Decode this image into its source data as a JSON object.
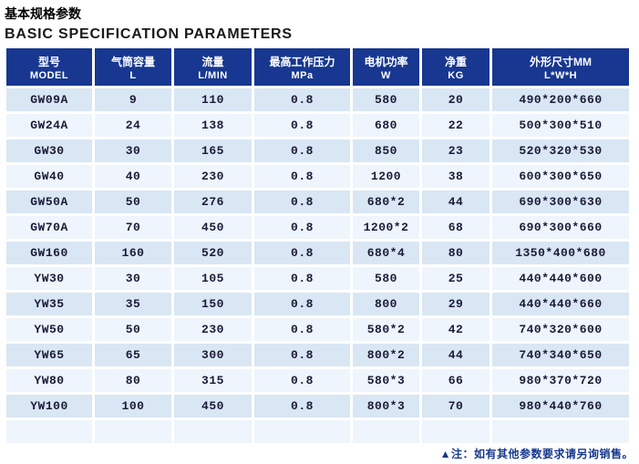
{
  "page": {
    "title_zh": "基本规格参数",
    "title_en": "BASIC SPECIFICATION PARAMETERS"
  },
  "colors": {
    "header_bg": "#173790",
    "row_dark": "#d9e6f4",
    "row_light": "#eef5fc",
    "data_text": "#1b1b38",
    "note_text": "#16388e"
  },
  "chart_data": {
    "type": "table",
    "title": "基本规格参数 / BASIC SPECIFICATION PARAMETERS",
    "columns": [
      {
        "zh": "型号",
        "en": "MODEL"
      },
      {
        "zh": "气筒容量",
        "en": "L"
      },
      {
        "zh": "流量",
        "en": "L/MIN"
      },
      {
        "zh": "最高工作压力",
        "en": "MPa"
      },
      {
        "zh": "电机功率",
        "en": "W"
      },
      {
        "zh": "净重",
        "en": "KG"
      },
      {
        "zh": "外形尺寸MM",
        "en": "L*W*H"
      }
    ],
    "rows": [
      [
        "GW09A",
        "9",
        "110",
        "0.8",
        "580",
        "20",
        "490*200*660"
      ],
      [
        "GW24A",
        "24",
        "138",
        "0.8",
        "680",
        "22",
        "500*300*510"
      ],
      [
        "GW30",
        "30",
        "165",
        "0.8",
        "850",
        "23",
        "520*320*530"
      ],
      [
        "GW40",
        "40",
        "230",
        "0.8",
        "1200",
        "38",
        "600*300*650"
      ],
      [
        "GW50A",
        "50",
        "276",
        "0.8",
        "680*2",
        "44",
        "690*300*630"
      ],
      [
        "GW70A",
        "70",
        "450",
        "0.8",
        "1200*2",
        "68",
        "690*300*660"
      ],
      [
        "GW160",
        "160",
        "520",
        "0.8",
        "680*4",
        "80",
        "1350*400*680"
      ],
      [
        "YW30",
        "30",
        "105",
        "0.8",
        "580",
        "25",
        "440*440*600"
      ],
      [
        "YW35",
        "35",
        "150",
        "0.8",
        "800",
        "29",
        "440*440*660"
      ],
      [
        "YW50",
        "50",
        "230",
        "0.8",
        "580*2",
        "42",
        "740*320*600"
      ],
      [
        "YW65",
        "65",
        "300",
        "0.8",
        "800*2",
        "44",
        "740*340*650"
      ],
      [
        "YW80",
        "80",
        "315",
        "0.8",
        "580*3",
        "66",
        "980*370*720"
      ],
      [
        "YW100",
        "100",
        "450",
        "0.8",
        "800*3",
        "70",
        "980*440*760"
      ]
    ],
    "trailing_empty_rows": 1,
    "note": "▲注：如有其他参数要求请另询销售。"
  }
}
